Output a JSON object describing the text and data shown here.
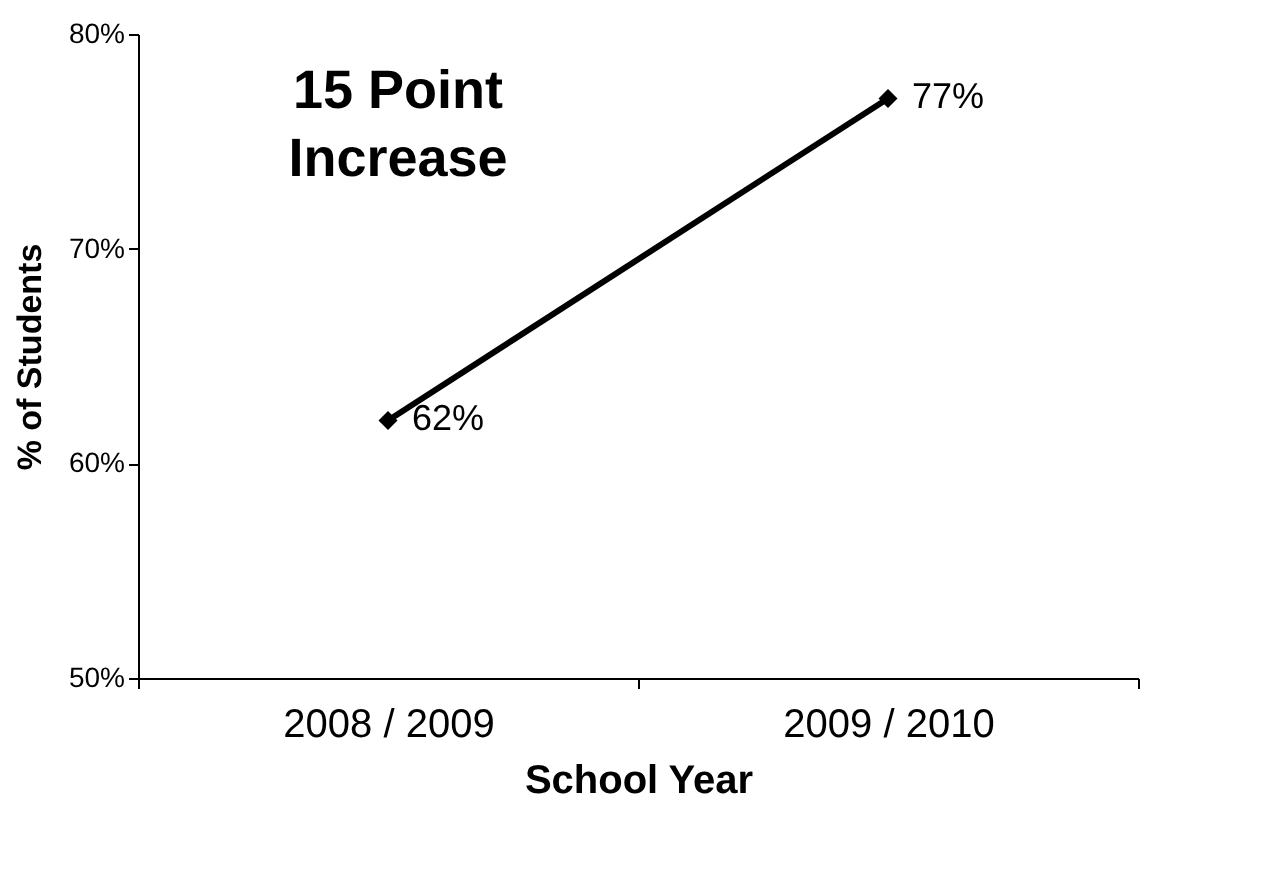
{
  "chart_data": {
    "type": "line",
    "categories": [
      "2008 / 2009",
      "2009 / 2010"
    ],
    "series": [
      {
        "color": "#000000",
        "values": [
          62,
          77
        ],
        "value_labels": [
          "62%",
          "77%"
        ]
      }
    ],
    "xlabel": "School Year",
    "ylabel": "% of Students",
    "ylim": [
      50,
      80
    ],
    "yticks": [
      {
        "value": 50,
        "label": "50%"
      },
      {
        "value": 60,
        "label": "60%"
      },
      {
        "value": 70,
        "label": "70%"
      },
      {
        "value": 80,
        "label": "80%"
      }
    ],
    "annotations": [
      "15 Point Increase"
    ],
    "marker": "diamond",
    "line_style": "solid",
    "grid": false
  }
}
